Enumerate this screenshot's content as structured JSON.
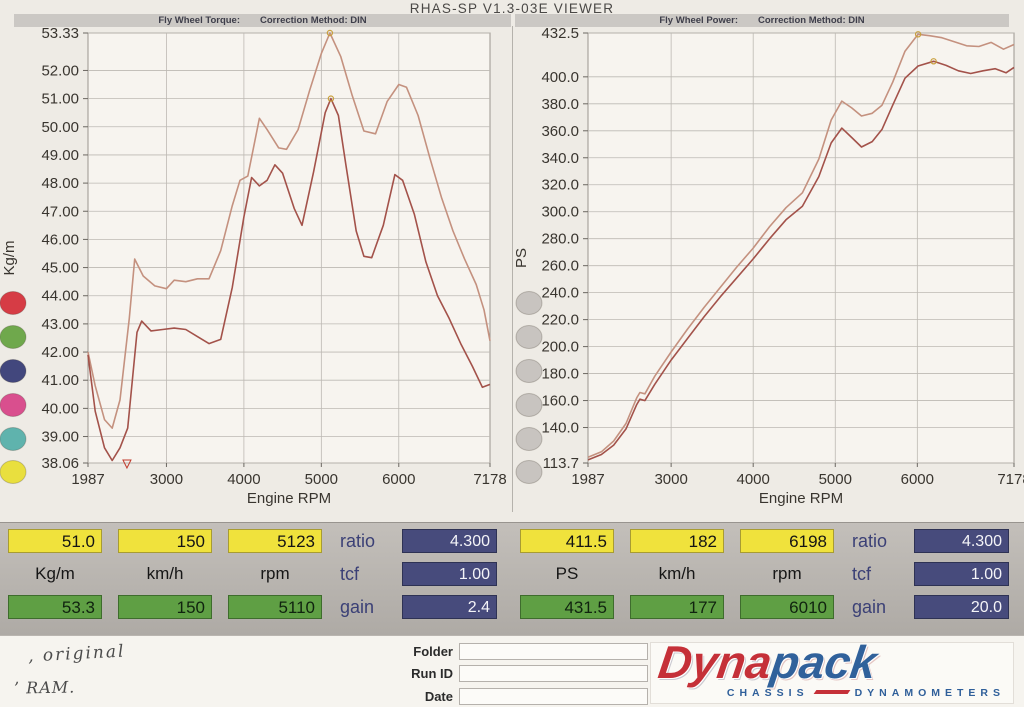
{
  "window": {
    "title": "RHAS-SP V1.3-03E VIEWER"
  },
  "chart_data": [
    {
      "id": "torque",
      "type": "line",
      "header": {
        "name": "Fly Wheel Torque:",
        "correction": "Correction Method: DIN"
      },
      "xlabel": "Engine RPM",
      "ylabel": "Kg/m",
      "xlim": [
        1987,
        7178
      ],
      "ylim": [
        38.06,
        53.33
      ],
      "grid": true,
      "xticks": {
        "values": [
          1987,
          3000,
          4000,
          5000,
          6000,
          7178
        ],
        "labels": [
          "1987",
          "3000",
          "4000",
          "5000",
          "6000",
          "7178"
        ]
      },
      "yticks": {
        "values": [
          53.33,
          52,
          51,
          50,
          49,
          48,
          47,
          46,
          45,
          44,
          43,
          42,
          41,
          40,
          39,
          38.06
        ],
        "labels": [
          "53.33",
          "52.00",
          "51.00",
          "50.00",
          "49.00",
          "48.00",
          "47.00",
          "46.00",
          "45.00",
          "44.00",
          "43.00",
          "42.00",
          "41.00",
          "40.00",
          "39.00",
          "38.06"
        ]
      },
      "series": [
        {
          "name": "torque-upper-trace",
          "color": "#c4917f",
          "points": [
            [
              1987,
              42.0
            ],
            [
              2080,
              40.8
            ],
            [
              2200,
              39.6
            ],
            [
              2300,
              39.3
            ],
            [
              2400,
              40.3
            ],
            [
              2520,
              43.2
            ],
            [
              2590,
              45.3
            ],
            [
              2700,
              44.7
            ],
            [
              2850,
              44.35
            ],
            [
              3000,
              44.25
            ],
            [
              3100,
              44.55
            ],
            [
              3250,
              44.5
            ],
            [
              3400,
              44.6
            ],
            [
              3550,
              44.6
            ],
            [
              3700,
              45.6
            ],
            [
              3850,
              47.2
            ],
            [
              3950,
              48.1
            ],
            [
              4050,
              48.25
            ],
            [
              4200,
              50.3
            ],
            [
              4300,
              49.9
            ],
            [
              4450,
              49.25
            ],
            [
              4550,
              49.2
            ],
            [
              4700,
              49.9
            ],
            [
              4850,
              51.3
            ],
            [
              5000,
              52.6
            ],
            [
              5110,
              53.33
            ],
            [
              5250,
              52.5
            ],
            [
              5400,
              51.1
            ],
            [
              5550,
              49.85
            ],
            [
              5700,
              49.75
            ],
            [
              5850,
              50.9
            ],
            [
              6000,
              51.5
            ],
            [
              6100,
              51.4
            ],
            [
              6250,
              50.4
            ],
            [
              6400,
              48.9
            ],
            [
              6550,
              47.5
            ],
            [
              6700,
              46.3
            ],
            [
              6850,
              45.3
            ],
            [
              7000,
              44.4
            ],
            [
              7100,
              43.5
            ],
            [
              7178,
              42.4
            ]
          ]
        },
        {
          "name": "torque-lower-trace",
          "color": "#a3524a",
          "points": [
            [
              1987,
              41.9
            ],
            [
              2080,
              39.9
            ],
            [
              2200,
              38.6
            ],
            [
              2300,
              38.15
            ],
            [
              2400,
              38.6
            ],
            [
              2500,
              39.3
            ],
            [
              2620,
              42.7
            ],
            [
              2680,
              43.1
            ],
            [
              2800,
              42.75
            ],
            [
              2950,
              42.8
            ],
            [
              3100,
              42.85
            ],
            [
              3250,
              42.8
            ],
            [
              3400,
              42.55
            ],
            [
              3550,
              42.3
            ],
            [
              3700,
              42.45
            ],
            [
              3850,
              44.3
            ],
            [
              4000,
              46.8
            ],
            [
              4100,
              48.2
            ],
            [
              4200,
              47.9
            ],
            [
              4300,
              48.1
            ],
            [
              4400,
              48.65
            ],
            [
              4500,
              48.35
            ],
            [
              4650,
              47.1
            ],
            [
              4750,
              46.5
            ],
            [
              4900,
              48.4
            ],
            [
              5050,
              50.5
            ],
            [
              5123,
              51.0
            ],
            [
              5220,
              50.4
            ],
            [
              5320,
              48.6
            ],
            [
              5450,
              46.3
            ],
            [
              5550,
              45.4
            ],
            [
              5650,
              45.35
            ],
            [
              5800,
              46.5
            ],
            [
              5950,
              48.3
            ],
            [
              6050,
              48.1
            ],
            [
              6200,
              46.9
            ],
            [
              6350,
              45.2
            ],
            [
              6500,
              44.0
            ],
            [
              6650,
              43.2
            ],
            [
              6800,
              42.3
            ],
            [
              6950,
              41.5
            ],
            [
              7080,
              40.75
            ],
            [
              7178,
              40.85
            ]
          ]
        }
      ],
      "markers": [
        {
          "x": 5110,
          "y": 53.33
        },
        {
          "x": 5123,
          "y": 51.0
        }
      ],
      "cursor_marker_x": 2490,
      "dots": [
        {
          "name": "red",
          "color": "#d63c45"
        },
        {
          "name": "green",
          "color": "#6fa84c"
        },
        {
          "name": "navy",
          "color": "#42477d"
        },
        {
          "name": "magenta",
          "color": "#d94f8e"
        },
        {
          "name": "teal",
          "color": "#5fb3ad"
        },
        {
          "name": "yellow",
          "color": "#e9df3e"
        }
      ]
    },
    {
      "id": "power",
      "type": "line",
      "header": {
        "name": "Fly Wheel Power:",
        "correction": "Correction Method: DIN"
      },
      "xlabel": "Engine RPM",
      "ylabel": "PS",
      "xlim": [
        1987,
        7178
      ],
      "ylim": [
        113.7,
        432.5
      ],
      "grid": true,
      "xticks": {
        "values": [
          1987,
          3000,
          4000,
          5000,
          6000,
          7178
        ],
        "labels": [
          "1987",
          "3000",
          "4000",
          "5000",
          "6000",
          "7178"
        ]
      },
      "yticks": {
        "values": [
          432.5,
          400,
          380,
          360,
          340,
          320,
          300,
          280,
          260,
          240,
          220,
          200,
          180,
          160,
          140,
          113.7
        ],
        "labels": [
          "432.5",
          "400.0",
          "380.0",
          "360.0",
          "340.0",
          "320.0",
          "300.0",
          "280.0",
          "260.0",
          "240.0",
          "220.0",
          "200.0",
          "180.0",
          "160.0",
          "140.0",
          "113.7"
        ]
      },
      "series": [
        {
          "name": "power-upper-trace",
          "color": "#c4917f",
          "points": [
            [
              1987,
              118
            ],
            [
              2150,
              122
            ],
            [
              2300,
              130
            ],
            [
              2450,
              143
            ],
            [
              2580,
              162
            ],
            [
              2620,
              166
            ],
            [
              2680,
              165
            ],
            [
              2800,
              178
            ],
            [
              3000,
              196
            ],
            [
              3200,
              213
            ],
            [
              3400,
              229
            ],
            [
              3600,
              244
            ],
            [
              3800,
              259
            ],
            [
              4000,
              273
            ],
            [
              4200,
              289
            ],
            [
              4400,
              303
            ],
            [
              4600,
              314
            ],
            [
              4800,
              339
            ],
            [
              4950,
              368
            ],
            [
              5080,
              382
            ],
            [
              5200,
              377
            ],
            [
              5320,
              371
            ],
            [
              5450,
              373
            ],
            [
              5570,
              379
            ],
            [
              5700,
              396
            ],
            [
              5850,
              419
            ],
            [
              6010,
              431.5
            ],
            [
              6150,
              430.5
            ],
            [
              6300,
              429
            ],
            [
              6450,
              426
            ],
            [
              6600,
              423
            ],
            [
              6750,
              422.5
            ],
            [
              6900,
              425.5
            ],
            [
              7050,
              420.5
            ],
            [
              7178,
              424
            ]
          ]
        },
        {
          "name": "power-lower-trace",
          "color": "#a3524a",
          "points": [
            [
              1987,
              116
            ],
            [
              2150,
              120
            ],
            [
              2300,
              127
            ],
            [
              2450,
              139
            ],
            [
              2580,
              157
            ],
            [
              2620,
              161
            ],
            [
              2680,
              160
            ],
            [
              2800,
              172
            ],
            [
              3000,
              190
            ],
            [
              3200,
              206
            ],
            [
              3400,
              222
            ],
            [
              3600,
              237
            ],
            [
              3800,
              251
            ],
            [
              4000,
              265
            ],
            [
              4200,
              280
            ],
            [
              4400,
              294
            ],
            [
              4600,
              304
            ],
            [
              4800,
              326
            ],
            [
              4950,
              351
            ],
            [
              5080,
              362
            ],
            [
              5200,
              355
            ],
            [
              5320,
              348
            ],
            [
              5450,
              352
            ],
            [
              5570,
              361
            ],
            [
              5700,
              379
            ],
            [
              5850,
              399
            ],
            [
              6010,
              408
            ],
            [
              6198,
              411.5
            ],
            [
              6350,
              408.5
            ],
            [
              6500,
              404.5
            ],
            [
              6650,
              402.5
            ],
            [
              6800,
              404.5
            ],
            [
              6950,
              406
            ],
            [
              7080,
              403
            ],
            [
              7178,
              407
            ]
          ]
        }
      ],
      "markers": [
        {
          "x": 6010,
          "y": 431.5
        },
        {
          "x": 6198,
          "y": 411.5
        }
      ],
      "dots": [
        {
          "name": "gray-1",
          "color": "#c8c4c0"
        },
        {
          "name": "gray-2",
          "color": "#c8c4c0"
        },
        {
          "name": "gray-3",
          "color": "#c8c4c0"
        },
        {
          "name": "gray-4",
          "color": "#c8c4c0"
        },
        {
          "name": "gray-5",
          "color": "#c8c4c0"
        },
        {
          "name": "gray-6",
          "color": "#c8c4c0"
        }
      ]
    }
  ],
  "readout_panels": [
    {
      "top_row": [
        "51.0",
        "150",
        "5123"
      ],
      "units": [
        "Kg/m",
        "km/h",
        "rpm"
      ],
      "bottom_row": [
        "53.3",
        "150",
        "5110"
      ],
      "params": [
        {
          "label": "ratio",
          "value": "4.300"
        },
        {
          "label": "tcf",
          "value": "1.00"
        },
        {
          "label": "gain",
          "value": "2.4"
        }
      ]
    },
    {
      "top_row": [
        "411.5",
        "182",
        "6198"
      ],
      "units": [
        "PS",
        "km/h",
        "rpm"
      ],
      "bottom_row": [
        "431.5",
        "177",
        "6010"
      ],
      "params": [
        {
          "label": "ratio",
          "value": "4.300"
        },
        {
          "label": "tcf",
          "value": "1.00"
        },
        {
          "label": "gain",
          "value": "20.0"
        }
      ]
    }
  ],
  "footer": {
    "notes": [
      ", original",
      "’ RAM."
    ],
    "fields": [
      {
        "label": "Folder",
        "value": ""
      },
      {
        "label": "Run ID",
        "value": ""
      },
      {
        "label": "Date",
        "value": ""
      }
    ],
    "logo": {
      "word1": "Dyna",
      "word2": "pack",
      "tagline1": "CHASSIS",
      "tagline2": "DYNAMOMETERS"
    }
  }
}
